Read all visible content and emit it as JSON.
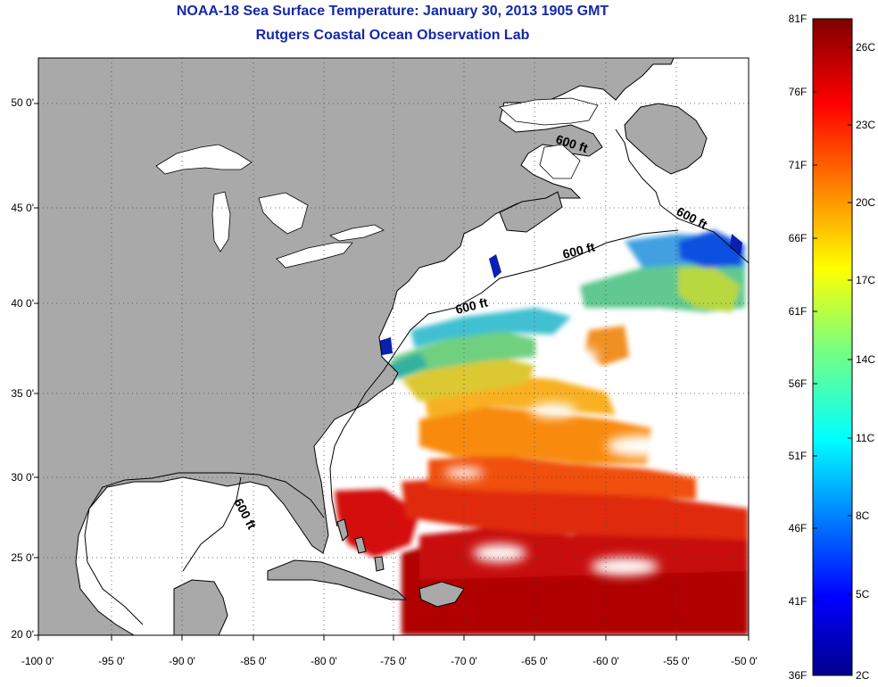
{
  "title": "NOAA-18 Sea Surface Temperature:  January 30, 2013 1905 GMT",
  "subtitle": "Rutgers Coastal Ocean Observation Lab",
  "lat_labels": [
    "50 0'",
    "45 0'",
    "40 0'",
    "35 0'",
    "30 0'",
    "25 0'",
    "20 0'"
  ],
  "lon_labels": [
    "-100 0'",
    "-95 0'",
    "-90 0'",
    "-85 0'",
    "-80 0'",
    "-75 0'",
    "-70 0'",
    "-65 0'",
    "-60 0'",
    "-55 0'",
    "-50 0'"
  ],
  "contour_labels": [
    "600 ft",
    "600 ft",
    "600 ft",
    "600 ft",
    "600 ft"
  ],
  "colorbar": {
    "fahrenheit": [
      "81F",
      "76F",
      "71F",
      "66F",
      "61F",
      "56F",
      "51F",
      "46F",
      "41F",
      "36F"
    ],
    "celsius": [
      "26C",
      "23C",
      "20C",
      "17C",
      "14C",
      "11C",
      "8C",
      "5C",
      "2C"
    ]
  },
  "colors": {
    "title": "#1428a8",
    "land": "#a9a9a9",
    "no_data": "#ffffff",
    "warm": "#b00000",
    "cold": "#00008c"
  }
}
